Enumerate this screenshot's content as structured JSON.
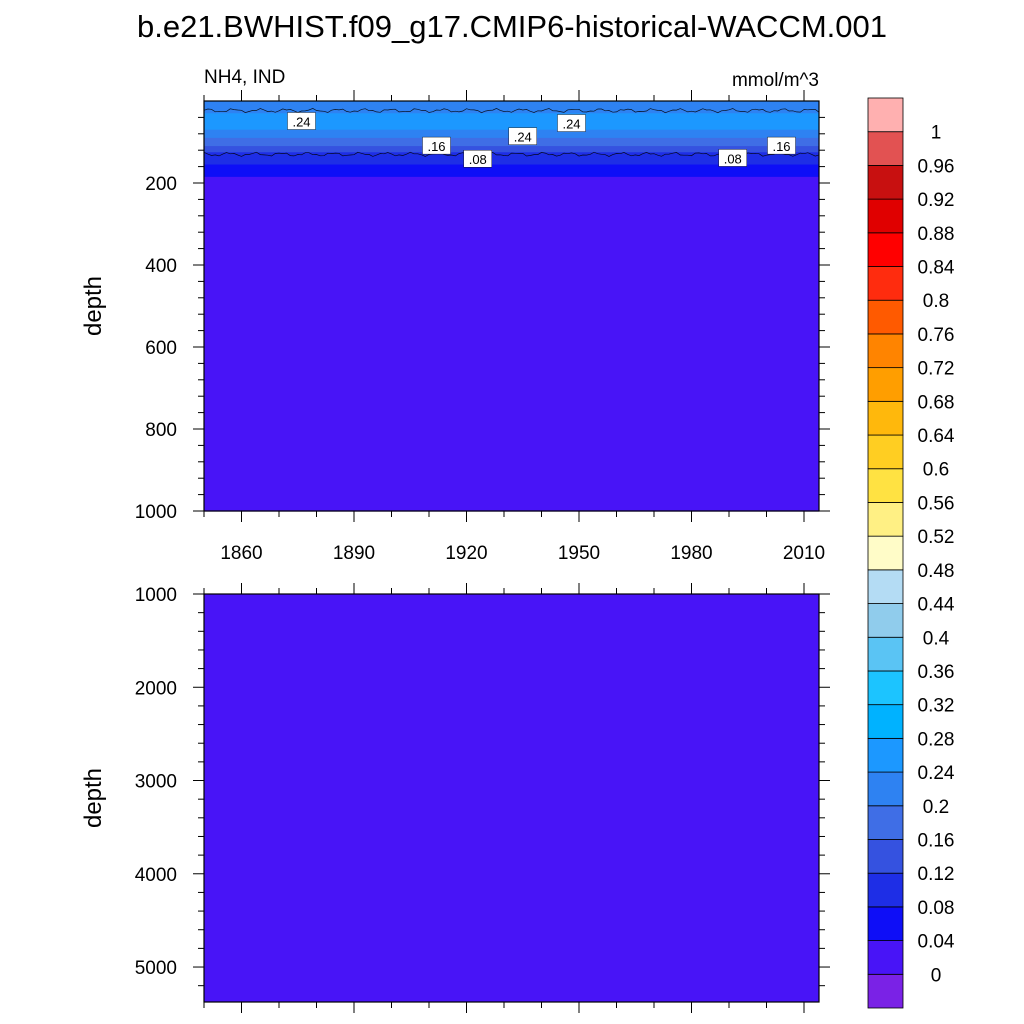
{
  "title": "b.e21.BWHIST.f09_g17.CMIP6-historical-WACCM.001",
  "chart_data": [
    {
      "type": "heatmap",
      "panel": "upper",
      "left_label": "NH4, IND",
      "right_label": "mmol/m^3",
      "ylabel": "depth",
      "xlim": [
        1850,
        2014
      ],
      "ylim": [
        0,
        1000
      ],
      "y_inverted": true,
      "xticks": [
        1860,
        1890,
        1920,
        1950,
        1980,
        2010
      ],
      "xtick_labels": [
        "1860",
        "1890",
        "1920",
        "1950",
        "1980",
        "2010"
      ],
      "yticks": [
        200,
        400,
        600,
        800,
        1000
      ],
      "ytick_labels": [
        "200",
        "400",
        "600",
        "800",
        "1000"
      ],
      "depth_profile": [
        {
          "depth": 0,
          "value": 0.2
        },
        {
          "depth": 10,
          "value": 0.22
        },
        {
          "depth": 30,
          "value": 0.25
        },
        {
          "depth": 50,
          "value": 0.25
        },
        {
          "depth": 70,
          "value": 0.24
        },
        {
          "depth": 90,
          "value": 0.2
        },
        {
          "depth": 110,
          "value": 0.16
        },
        {
          "depth": 125,
          "value": 0.13
        },
        {
          "depth": 140,
          "value": 0.1
        },
        {
          "depth": 155,
          "value": 0.08
        },
        {
          "depth": 170,
          "value": 0.06
        },
        {
          "depth": 185,
          "value": 0.04
        },
        {
          "depth": 195,
          "value": 0.02
        },
        {
          "depth": 1000,
          "value": 0.02
        }
      ],
      "contour_labels": [
        {
          "text": ".24",
          "year": 1876,
          "depth": 50
        },
        {
          "text": ".16",
          "year": 1912,
          "depth": 110
        },
        {
          "text": ".24",
          "year": 1935,
          "depth": 87
        },
        {
          "text": ".24",
          "year": 1948,
          "depth": 55
        },
        {
          "text": ".08",
          "year": 1923,
          "depth": 142
        },
        {
          "text": ".08",
          "year": 1991,
          "depth": 140
        },
        {
          "text": ".16",
          "year": 2004,
          "depth": 110
        }
      ]
    },
    {
      "type": "heatmap",
      "panel": "lower",
      "ylabel": "depth",
      "xlim": [
        1850,
        2014
      ],
      "ylim": [
        1000,
        5375
      ],
      "y_inverted": true,
      "yticks": [
        1000,
        2000,
        3000,
        4000,
        5000
      ],
      "ytick_labels": [
        "1000",
        "2000",
        "3000",
        "4000",
        "5000"
      ],
      "uniform_value": 0.02
    }
  ],
  "colorbar": {
    "levels": [
      "0",
      "0.04",
      "0.08",
      "0.12",
      "0.16",
      "0.2",
      "0.24",
      "0.28",
      "0.32",
      "0.36",
      "0.4",
      "0.44",
      "0.48",
      "0.52",
      "0.56",
      "0.6",
      "0.64",
      "0.68",
      "0.72",
      "0.76",
      "0.8",
      "0.84",
      "0.88",
      "0.92",
      "0.96",
      "1"
    ],
    "colors": [
      "#7a22e6",
      "#4814f7",
      "#0e0ef7",
      "#1e2ee6",
      "#3552e0",
      "#3f6ee6",
      "#2e82f2",
      "#1c98ff",
      "#00b2ff",
      "#1cc4ff",
      "#5ac4f4",
      "#90ccec",
      "#b4dcf4",
      "#fffcc8",
      "#fff084",
      "#ffe242",
      "#ffce22",
      "#ffb80c",
      "#ff9e00",
      "#ff8400",
      "#ff5a00",
      "#ff2c0e",
      "#ff0000",
      "#e00000",
      "#c81010",
      "#e25252",
      "#ffb0b0"
    ]
  }
}
